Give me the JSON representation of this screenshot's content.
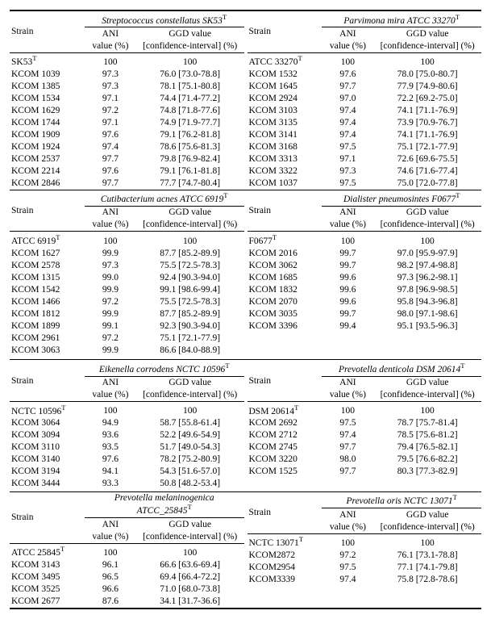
{
  "labels": {
    "strain": "Strain",
    "ani": "ANI",
    "ani2": "value (%)",
    "ggd": "GGD value",
    "ggd2": "[confidence-interval] (%)"
  },
  "panels": [
    {
      "species_html": "<i>Streptococcus constellatus</i> SK53<sup>T</sup>",
      "rows": [
        [
          "SK53<sup>T</sup>",
          "100",
          "100"
        ],
        [
          "KCOM 1039",
          "97.3",
          "76.0 [73.0-78.8]"
        ],
        [
          "KCOM 1385",
          "97.3",
          "78.1 [75.1-80.8]"
        ],
        [
          "KCOM 1534",
          "97.1",
          "74.4 [71.4-77.2]"
        ],
        [
          "KCOM 1629",
          "97.2",
          "74.8 [71.8-77.6]"
        ],
        [
          "KCOM 1744",
          "97.1",
          "74.9 [71.9-77.7]"
        ],
        [
          "KCOM 1909",
          "97.6",
          "79.1 [76.2-81.8]"
        ],
        [
          "KCOM 1924",
          "97.4",
          "78.6 [75.6-81.3]"
        ],
        [
          "KCOM 2537",
          "97.7",
          "79.8 [76.9-82.4]"
        ],
        [
          "KCOM 2214",
          "97.6",
          "79.1 [76.1-81.8]"
        ],
        [
          "KCOM 2846",
          "97.7",
          "77.7 [74.7-80.4]"
        ]
      ]
    },
    {
      "species_html": "<i>Parvimona mira</i> ATCC 33270<sup>T</sup>",
      "rows": [
        [
          "ATCC 33270<sup>T</sup>",
          "100",
          "100"
        ],
        [
          "KCOM 1532",
          "97.6",
          "78.0 [75.0-80.7]"
        ],
        [
          "KCOM 1645",
          "97.7",
          "77.9 [74.9-80.6]"
        ],
        [
          "KCOM 2924",
          "97.0",
          "72.2 [69.2-75.0]"
        ],
        [
          "KCOM 3103",
          "97.4",
          "74.1 [71.1-76.9]"
        ],
        [
          "KCOM 3135",
          "97.4",
          "73.9 [70.9-76.7]"
        ],
        [
          "KCOM 3141",
          "97.4",
          "74.1 [71.1-76.9]"
        ],
        [
          "KCOM 3168",
          "97.5",
          "75.1 [72.1-77.9]"
        ],
        [
          "KCOM 3313",
          "97.1",
          "72.6 [69.6-75.5]"
        ],
        [
          "KCOM 3322",
          "97.3",
          "74.6 [71.6-77.4]"
        ],
        [
          "KCOM 1037",
          "97.5",
          "75.0 [72.0-77.8]"
        ]
      ]
    },
    {
      "species_html": "<i>Cutibacterium acnes</i> ATCC 6919<sup>T</sup>",
      "rows": [
        [
          "ATCC 6919<sup>T</sup>",
          "100",
          "100"
        ],
        [
          "KCOM 1627",
          "99.9",
          "87.7 [85.2-89.9]"
        ],
        [
          "KCOM 2578",
          "97.3",
          "75.5 [72.5-78.3]"
        ],
        [
          "KCOM 1315",
          "99.0",
          "92.4 [90.3-94.0]"
        ],
        [
          "KCOM 1542",
          "99.9",
          "99.1 [98.6-99.4]"
        ],
        [
          "KCOM 1466",
          "97.2",
          "75.5 [72.5-78.3]"
        ],
        [
          "KCOM 1812",
          "99.9",
          "87.7 [85.2-89.9]"
        ],
        [
          "KCOM 1899",
          "99.1",
          "92.3 [90.3-94.0]"
        ],
        [
          "KCOM 2961",
          "97.2",
          "75.1 [72.1-77.9]"
        ],
        [
          "KCOM 3063",
          "99.9",
          "86.6 [84.0-88.9]"
        ]
      ]
    },
    {
      "species_html": "<i>Dialister pneumosintes</i> F0677<sup>T</sup>",
      "rows": [
        [
          "F0677<sup>T</sup>",
          "100",
          "100"
        ],
        [
          "KCOM 2016",
          "99.7",
          "97.0 [95.9-97.9]"
        ],
        [
          "KCOM 3062",
          "99.7",
          "98.2 [97.4-98.8]"
        ],
        [
          "KCOM 1685",
          "99.6",
          "97.3 [96.2-98.1]"
        ],
        [
          "KCOM 1832",
          "99.6",
          "97.8 [96.9-98.5]"
        ],
        [
          "KCOM 2070",
          "99.6",
          "95.8 [94.3-96.8]"
        ],
        [
          "KCOM 3035",
          "99.7",
          "98.0 [97.1-98.6]"
        ],
        [
          "KCOM 3396",
          "99.4",
          "95.1 [93.5-96.3]"
        ],
        [
          "",
          "",
          ""
        ],
        [
          "",
          "",
          ""
        ]
      ]
    },
    {
      "species_html": "<i>Eikenella corrodens</i> NCTC 10596<sup>T</sup>",
      "rows": [
        [
          "NCTC 10596<sup>T</sup>",
          "100",
          "100"
        ],
        [
          "KCOM 3064",
          "94.9",
          "58.7 [55.8-61.4]"
        ],
        [
          "KCOM 3094",
          "93.6",
          "52.2 [49.6-54.9]"
        ],
        [
          "KCOM 3110",
          "93.5",
          "51.7 [49.0-54.3]"
        ],
        [
          "KCOM 3140",
          "97.6",
          "78.2 [75.2-80.9]"
        ],
        [
          "KCOM 3194",
          "94.1",
          "54.3 [51.6-57.0]"
        ],
        [
          "KCOM 3444",
          "93.3",
          "50.8 [48.2-53.4]"
        ]
      ]
    },
    {
      "species_html": "<i>Prevotella denticola</i> DSM 20614<sup>T</sup>",
      "rows": [
        [
          "DSM 20614<sup>T</sup>",
          "100",
          "100"
        ],
        [
          "KCOM 2692",
          "97.5",
          "78.7 [75.7-81.4]"
        ],
        [
          "KCOM 2712",
          "97.4",
          "78.5 [75.6-81.2]"
        ],
        [
          "KCOM 2745",
          "97.7",
          "79.4 [76.5-82.1]"
        ],
        [
          "KCOM 3220",
          "98.0",
          "79.5 [76.6-82.2]"
        ],
        [
          "KCOM 1525",
          "97.7",
          "80.3 [77.3-82.9]"
        ],
        [
          "",
          "",
          ""
        ]
      ]
    },
    {
      "species_html": "<i>Prevotella melaninogenica</i> ATCC_25845<sup>T</sup>",
      "rows": [
        [
          "ATCC 25845<sup>T</sup>",
          "100",
          "100"
        ],
        [
          "KCOM 3143",
          "96.1",
          "66.6 [63.6-69.4]"
        ],
        [
          "KCOM 3495",
          "96.5",
          "69.4 [66.4-72.2]"
        ],
        [
          "KCOM 3525",
          "96.6",
          "71.0 [68.0-73.8]"
        ],
        [
          "KCOM 2677",
          "87.6",
          "34.1 [31.7-36.6]"
        ]
      ]
    },
    {
      "species_html": "<i>Prevotella oris</i> NCTC 13071<sup>T</sup>",
      "rows": [
        [
          "NCTC 13071<sup>T</sup>",
          "100",
          "100"
        ],
        [
          "KCOM2872",
          "97.2",
          "76.1 [73.1-78.8]"
        ],
        [
          "KCOM2954",
          "97.5",
          "77.1 [74.1-79.8]"
        ],
        [
          "KCOM3339",
          "97.4",
          "75.8 [72.8-78.6]"
        ],
        [
          "",
          "",
          ""
        ]
      ]
    }
  ]
}
